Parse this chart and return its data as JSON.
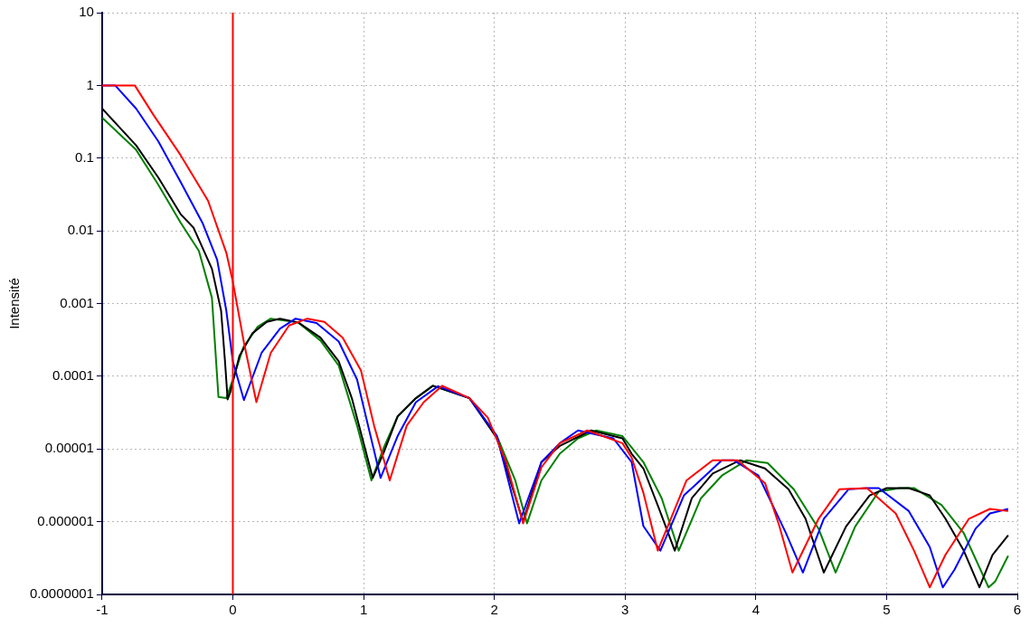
{
  "chart_data": {
    "type": "line",
    "ylabel": "Intensité",
    "log": "y",
    "grid": true,
    "legend": false,
    "marker": "none",
    "line_style": "solid",
    "xlim": [
      -1,
      6
    ],
    "xticks": [
      -1,
      0,
      1,
      2,
      3,
      4,
      5,
      6
    ],
    "ylim": [
      1e-07,
      10
    ],
    "yticks": [
      10,
      1,
      0.1,
      0.01,
      0.001,
      0.0001,
      {
        "value": 1e-05,
        "label": "0.00001"
      },
      {
        "value": 1e-06,
        "label": "0.000001"
      },
      {
        "value": 1e-07,
        "label": "0.0000001"
      }
    ],
    "ref_lines": [
      {
        "axis": "x",
        "value": 0,
        "color": "#ff0000"
      }
    ],
    "series": [
      {
        "color": "#ff0000",
        "x": [
          -1,
          -0.75,
          -0.61,
          -0.4,
          -0.19,
          -0.05,
          0,
          0.085,
          0.18,
          0.29,
          0.43,
          0.57,
          0.7,
          0.84,
          0.98,
          1.08,
          1.2,
          1.33,
          1.46,
          1.6,
          1.81,
          1.95,
          2.09,
          2.22,
          2.36,
          2.5,
          2.71,
          2.98,
          3.05,
          3.14,
          3.25,
          3.47,
          3.67,
          3.86,
          4.07,
          4.18,
          4.28,
          4.48,
          4.64,
          4.85,
          5.07,
          5.21,
          5.33,
          5.45,
          5.63,
          5.79,
          5.93
        ],
        "values": [
          1,
          1,
          0.4,
          0.11,
          0.026,
          0.005,
          0.002,
          0.00029,
          4.4e-05,
          0.00021,
          0.0005,
          0.00062,
          0.00056,
          0.00034,
          0.00012,
          2.1e-05,
          3.7e-06,
          2.1e-05,
          4.4e-05,
          7.4e-05,
          5e-05,
          2.7e-05,
          6.6e-06,
          9.5e-07,
          5.6e-06,
          1.2e-05,
          1.8e-05,
          1.2e-05,
          7.6e-06,
          2.5e-06,
          4e-07,
          3.7e-06,
          7e-06,
          7e-06,
          3.4e-06,
          8.7e-07,
          2e-07,
          1.1e-06,
          2.8e-06,
          2.9e-06,
          1.3e-06,
          4e-07,
          1.25e-07,
          3.5e-07,
          1.1e-06,
          1.5e-06,
          1.4e-06
        ]
      },
      {
        "color": "#0000ff",
        "x": [
          -1,
          -0.9,
          -0.74,
          -0.57,
          -0.4,
          -0.23,
          -0.12,
          -0.05,
          0,
          0.085,
          0.22,
          0.36,
          0.48,
          0.64,
          0.81,
          0.95,
          1.13,
          1.26,
          1.4,
          1.57,
          1.81,
          2.02,
          2.19,
          2.36,
          2.5,
          2.64,
          2.91,
          3.05,
          3.14,
          3.27,
          3.45,
          3.74,
          3.83,
          4.02,
          4.23,
          4.36,
          4.52,
          4.71,
          4.85,
          4.94,
          5.17,
          5.33,
          5.43,
          5.52,
          5.68,
          5.79,
          5.93
        ],
        "values": [
          1,
          1,
          0.48,
          0.17,
          0.047,
          0.0126,
          0.004,
          0.0008,
          0.00016,
          4.7e-05,
          0.00021,
          0.00045,
          0.00062,
          0.00054,
          0.0003,
          9e-05,
          4e-06,
          1.5e-05,
          4.4e-05,
          7.3e-05,
          5e-05,
          1.5e-05,
          9.5e-07,
          6.6e-06,
          1.2e-05,
          1.8e-05,
          1.4e-05,
          6.6e-06,
          8.7e-07,
          4e-07,
          2.3e-06,
          7e-06,
          7e-06,
          4.3e-06,
          7e-07,
          2e-07,
          1.1e-06,
          2.8e-06,
          2.9e-06,
          2.9e-06,
          1.4e-06,
          4.5e-07,
          1.25e-07,
          2.2e-07,
          8e-07,
          1.3e-06,
          1.5e-06
        ]
      },
      {
        "color": "#000000",
        "x": [
          -1,
          -0.74,
          -0.57,
          -0.4,
          -0.3,
          -0.16,
          -0.09,
          -0.06,
          -0.04,
          -0.02,
          0.05,
          0.15,
          0.26,
          0.36,
          0.5,
          0.67,
          0.81,
          0.91,
          1.07,
          1.15,
          1.26,
          1.4,
          1.53,
          1.81,
          2.02,
          2.22,
          2.36,
          2.5,
          2.74,
          2.98,
          3.05,
          3.14,
          3.26,
          3.38,
          3.51,
          3.67,
          3.88,
          4.07,
          4.25,
          4.38,
          4.52,
          4.69,
          4.87,
          5,
          5.17,
          5.33,
          5.45,
          5.59,
          5.71,
          5.81,
          5.93
        ],
        "values": [
          0.48,
          0.15,
          0.054,
          0.017,
          0.011,
          0.003,
          0.0008,
          0.00016,
          4.8e-05,
          6e-05,
          0.00019,
          0.00039,
          0.00056,
          0.00062,
          0.00055,
          0.00034,
          0.00016,
          5e-05,
          4e-06,
          8.6e-06,
          2.8e-05,
          5e-05,
          7.4e-05,
          5e-05,
          1.4e-05,
          1e-06,
          6.6e-06,
          1.1e-05,
          1.8e-05,
          1.4e-05,
          8.6e-06,
          5.4e-06,
          1.5e-06,
          4e-07,
          2.1e-06,
          4.6e-06,
          7e-06,
          5.4e-06,
          2.8e-06,
          1.1e-06,
          2e-07,
          8.6e-07,
          2.3e-06,
          2.9e-06,
          2.9e-06,
          2.3e-06,
          1.1e-06,
          4e-07,
          1.25e-07,
          3.5e-07,
          6.5e-07
        ]
      },
      {
        "color": "#008000",
        "x": [
          -1,
          -0.74,
          -0.57,
          -0.4,
          -0.26,
          -0.16,
          -0.11,
          -0.05,
          0,
          0.08,
          0.19,
          0.29,
          0.5,
          0.67,
          0.81,
          0.95,
          1.06,
          1.15,
          1.26,
          1.4,
          1.53,
          1.81,
          2.02,
          2.16,
          2.25,
          2.36,
          2.5,
          2.64,
          2.78,
          2.98,
          3.14,
          3.28,
          3.41,
          3.58,
          3.74,
          3.93,
          4.09,
          4.29,
          4.48,
          4.61,
          4.76,
          4.94,
          5.1,
          5.21,
          5.42,
          5.59,
          5.78,
          5.83,
          5.93
        ],
        "values": [
          0.36,
          0.13,
          0.043,
          0.013,
          0.0053,
          0.0012,
          5.2e-05,
          5e-05,
          9e-05,
          0.00025,
          0.00048,
          0.00062,
          0.00055,
          0.00031,
          0.00014,
          2.1e-05,
          3.7e-06,
          1e-05,
          2.8e-05,
          5e-05,
          7.4e-05,
          5e-05,
          1.5e-05,
          3.7e-06,
          9.5e-07,
          3.7e-06,
          8.6e-06,
          1.4e-05,
          1.8e-05,
          1.5e-05,
          6.6e-06,
          2.1e-06,
          4e-07,
          2.1e-06,
          4.3e-06,
          7e-06,
          6.4e-06,
          2.8e-06,
          8e-07,
          2e-07,
          8.6e-07,
          2.6e-06,
          2.9e-06,
          2.9e-06,
          1.7e-06,
          7e-07,
          1.25e-07,
          1.5e-07,
          3.4e-07
        ]
      }
    ]
  }
}
